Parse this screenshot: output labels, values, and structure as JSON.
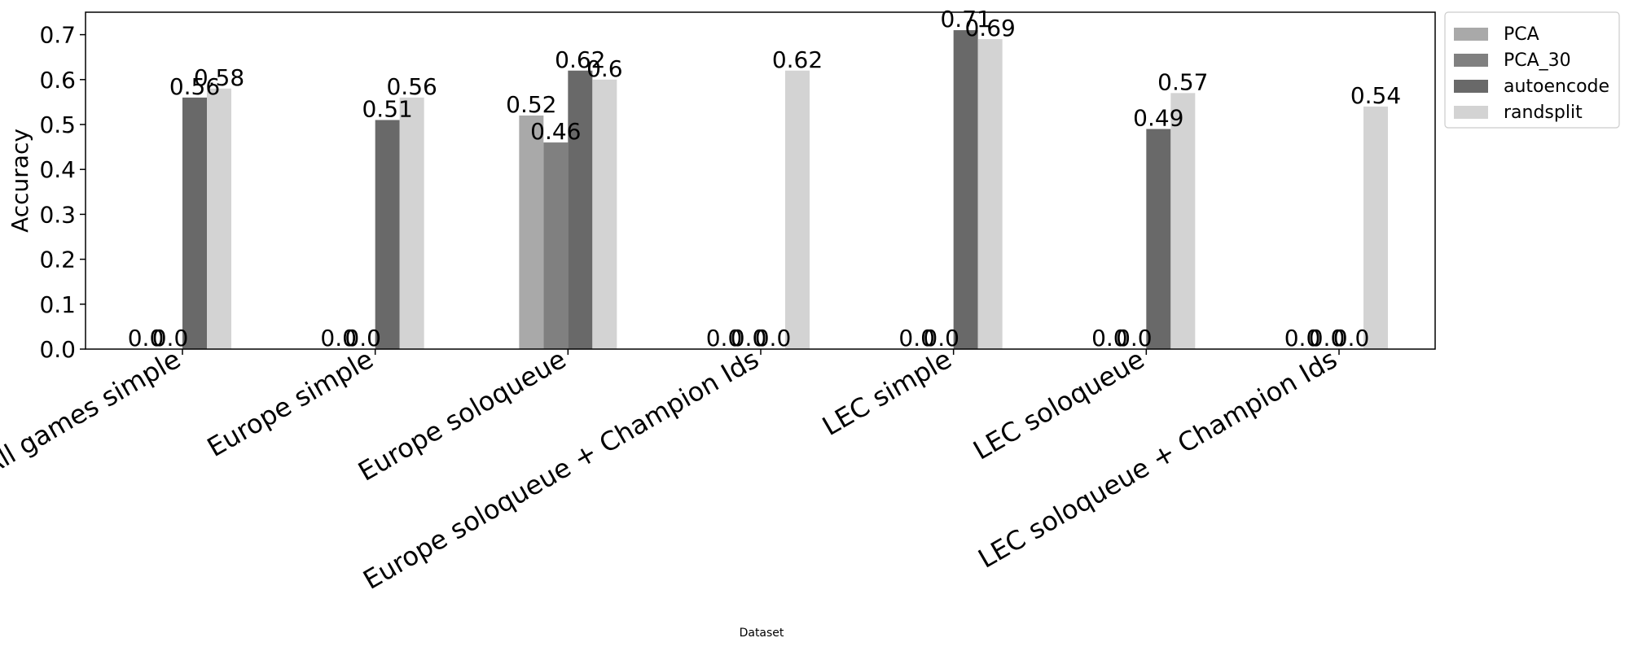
{
  "chart_data": {
    "type": "bar",
    "xlabel": "Dataset",
    "ylabel": "Accuracy",
    "ylim": [
      0,
      0.75
    ],
    "yticks": [
      "0.0",
      "0.1",
      "0.2",
      "0.3",
      "0.4",
      "0.5",
      "0.6",
      "0.7"
    ],
    "legend_position": "outside top-right",
    "grid": false,
    "categories": [
      "All games simple",
      "Europe simple",
      "Europe soloqueue",
      "Europe soloqueue + Champion Ids",
      "LEC simple",
      "LEC soloqueue",
      "LEC soloqueue + Champion Ids"
    ],
    "series": [
      {
        "name": "PCA",
        "color": "#a9a9a9",
        "values": [
          0.0,
          0.0,
          0.52,
          0.0,
          0.0,
          0.0,
          0.0
        ],
        "labels": [
          "0.0",
          "0.0",
          "0.52",
          "0.0",
          "0.0",
          "0.0",
          "0.0"
        ]
      },
      {
        "name": "PCA_30",
        "color": "#808080",
        "values": [
          0.0,
          0.0,
          0.46,
          0.0,
          0.0,
          0.0,
          0.0
        ],
        "labels": [
          "0.0",
          "0.0",
          "0.46",
          "0.0",
          "0.0",
          "0.0",
          "0.0"
        ]
      },
      {
        "name": "autoencode",
        "color": "#696969",
        "values": [
          0.56,
          0.51,
          0.62,
          0.0,
          0.71,
          0.49,
          0.0
        ],
        "labels": [
          "0.56",
          "0.51",
          "0.62",
          "0.0",
          "0.71",
          "0.49",
          "0.0"
        ]
      },
      {
        "name": "randsplit",
        "color": "#d3d3d3",
        "values": [
          0.58,
          0.56,
          0.6,
          0.62,
          0.69,
          0.57,
          0.54
        ],
        "labels": [
          "0.58",
          "0.56",
          "0.6",
          "0.62",
          "0.69",
          "0.57",
          "0.54"
        ]
      }
    ]
  }
}
